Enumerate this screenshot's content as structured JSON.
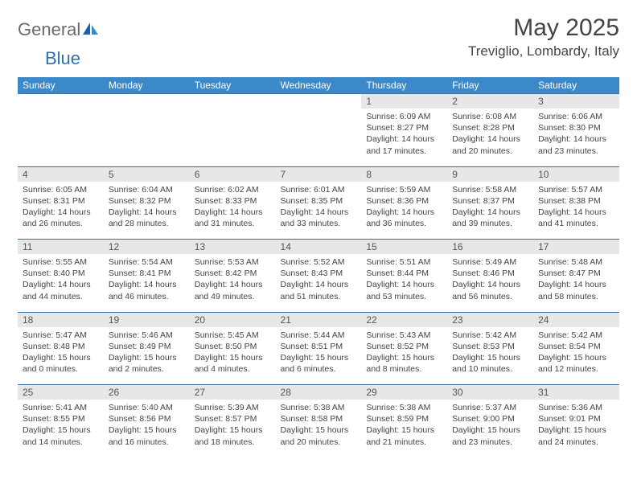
{
  "logo": {
    "text1": "General",
    "text2": "Blue"
  },
  "title": "May 2025",
  "location": "Treviglio, Lombardy, Italy",
  "colors": {
    "header_bg": "#3b89c9",
    "header_text": "#ffffff",
    "daynum_bg": "#e7e7e7",
    "border": "#3b6fa0",
    "text": "#444444",
    "logo_gray": "#6b6b6b",
    "logo_blue": "#2f6fb0"
  },
  "weekdays": [
    "Sunday",
    "Monday",
    "Tuesday",
    "Wednesday",
    "Thursday",
    "Friday",
    "Saturday"
  ],
  "weeks": [
    [
      null,
      null,
      null,
      null,
      {
        "n": "1",
        "sunrise": "Sunrise: 6:09 AM",
        "sunset": "Sunset: 8:27 PM",
        "day1": "Daylight: 14 hours",
        "day2": "and 17 minutes."
      },
      {
        "n": "2",
        "sunrise": "Sunrise: 6:08 AM",
        "sunset": "Sunset: 8:28 PM",
        "day1": "Daylight: 14 hours",
        "day2": "and 20 minutes."
      },
      {
        "n": "3",
        "sunrise": "Sunrise: 6:06 AM",
        "sunset": "Sunset: 8:30 PM",
        "day1": "Daylight: 14 hours",
        "day2": "and 23 minutes."
      }
    ],
    [
      {
        "n": "4",
        "sunrise": "Sunrise: 6:05 AM",
        "sunset": "Sunset: 8:31 PM",
        "day1": "Daylight: 14 hours",
        "day2": "and 26 minutes."
      },
      {
        "n": "5",
        "sunrise": "Sunrise: 6:04 AM",
        "sunset": "Sunset: 8:32 PM",
        "day1": "Daylight: 14 hours",
        "day2": "and 28 minutes."
      },
      {
        "n": "6",
        "sunrise": "Sunrise: 6:02 AM",
        "sunset": "Sunset: 8:33 PM",
        "day1": "Daylight: 14 hours",
        "day2": "and 31 minutes."
      },
      {
        "n": "7",
        "sunrise": "Sunrise: 6:01 AM",
        "sunset": "Sunset: 8:35 PM",
        "day1": "Daylight: 14 hours",
        "day2": "and 33 minutes."
      },
      {
        "n": "8",
        "sunrise": "Sunrise: 5:59 AM",
        "sunset": "Sunset: 8:36 PM",
        "day1": "Daylight: 14 hours",
        "day2": "and 36 minutes."
      },
      {
        "n": "9",
        "sunrise": "Sunrise: 5:58 AM",
        "sunset": "Sunset: 8:37 PM",
        "day1": "Daylight: 14 hours",
        "day2": "and 39 minutes."
      },
      {
        "n": "10",
        "sunrise": "Sunrise: 5:57 AM",
        "sunset": "Sunset: 8:38 PM",
        "day1": "Daylight: 14 hours",
        "day2": "and 41 minutes."
      }
    ],
    [
      {
        "n": "11",
        "sunrise": "Sunrise: 5:55 AM",
        "sunset": "Sunset: 8:40 PM",
        "day1": "Daylight: 14 hours",
        "day2": "and 44 minutes."
      },
      {
        "n": "12",
        "sunrise": "Sunrise: 5:54 AM",
        "sunset": "Sunset: 8:41 PM",
        "day1": "Daylight: 14 hours",
        "day2": "and 46 minutes."
      },
      {
        "n": "13",
        "sunrise": "Sunrise: 5:53 AM",
        "sunset": "Sunset: 8:42 PM",
        "day1": "Daylight: 14 hours",
        "day2": "and 49 minutes."
      },
      {
        "n": "14",
        "sunrise": "Sunrise: 5:52 AM",
        "sunset": "Sunset: 8:43 PM",
        "day1": "Daylight: 14 hours",
        "day2": "and 51 minutes."
      },
      {
        "n": "15",
        "sunrise": "Sunrise: 5:51 AM",
        "sunset": "Sunset: 8:44 PM",
        "day1": "Daylight: 14 hours",
        "day2": "and 53 minutes."
      },
      {
        "n": "16",
        "sunrise": "Sunrise: 5:49 AM",
        "sunset": "Sunset: 8:46 PM",
        "day1": "Daylight: 14 hours",
        "day2": "and 56 minutes."
      },
      {
        "n": "17",
        "sunrise": "Sunrise: 5:48 AM",
        "sunset": "Sunset: 8:47 PM",
        "day1": "Daylight: 14 hours",
        "day2": "and 58 minutes."
      }
    ],
    [
      {
        "n": "18",
        "sunrise": "Sunrise: 5:47 AM",
        "sunset": "Sunset: 8:48 PM",
        "day1": "Daylight: 15 hours",
        "day2": "and 0 minutes."
      },
      {
        "n": "19",
        "sunrise": "Sunrise: 5:46 AM",
        "sunset": "Sunset: 8:49 PM",
        "day1": "Daylight: 15 hours",
        "day2": "and 2 minutes."
      },
      {
        "n": "20",
        "sunrise": "Sunrise: 5:45 AM",
        "sunset": "Sunset: 8:50 PM",
        "day1": "Daylight: 15 hours",
        "day2": "and 4 minutes."
      },
      {
        "n": "21",
        "sunrise": "Sunrise: 5:44 AM",
        "sunset": "Sunset: 8:51 PM",
        "day1": "Daylight: 15 hours",
        "day2": "and 6 minutes."
      },
      {
        "n": "22",
        "sunrise": "Sunrise: 5:43 AM",
        "sunset": "Sunset: 8:52 PM",
        "day1": "Daylight: 15 hours",
        "day2": "and 8 minutes."
      },
      {
        "n": "23",
        "sunrise": "Sunrise: 5:42 AM",
        "sunset": "Sunset: 8:53 PM",
        "day1": "Daylight: 15 hours",
        "day2": "and 10 minutes."
      },
      {
        "n": "24",
        "sunrise": "Sunrise: 5:42 AM",
        "sunset": "Sunset: 8:54 PM",
        "day1": "Daylight: 15 hours",
        "day2": "and 12 minutes."
      }
    ],
    [
      {
        "n": "25",
        "sunrise": "Sunrise: 5:41 AM",
        "sunset": "Sunset: 8:55 PM",
        "day1": "Daylight: 15 hours",
        "day2": "and 14 minutes."
      },
      {
        "n": "26",
        "sunrise": "Sunrise: 5:40 AM",
        "sunset": "Sunset: 8:56 PM",
        "day1": "Daylight: 15 hours",
        "day2": "and 16 minutes."
      },
      {
        "n": "27",
        "sunrise": "Sunrise: 5:39 AM",
        "sunset": "Sunset: 8:57 PM",
        "day1": "Daylight: 15 hours",
        "day2": "and 18 minutes."
      },
      {
        "n": "28",
        "sunrise": "Sunrise: 5:38 AM",
        "sunset": "Sunset: 8:58 PM",
        "day1": "Daylight: 15 hours",
        "day2": "and 20 minutes."
      },
      {
        "n": "29",
        "sunrise": "Sunrise: 5:38 AM",
        "sunset": "Sunset: 8:59 PM",
        "day1": "Daylight: 15 hours",
        "day2": "and 21 minutes."
      },
      {
        "n": "30",
        "sunrise": "Sunrise: 5:37 AM",
        "sunset": "Sunset: 9:00 PM",
        "day1": "Daylight: 15 hours",
        "day2": "and 23 minutes."
      },
      {
        "n": "31",
        "sunrise": "Sunrise: 5:36 AM",
        "sunset": "Sunset: 9:01 PM",
        "day1": "Daylight: 15 hours",
        "day2": "and 24 minutes."
      }
    ]
  ]
}
